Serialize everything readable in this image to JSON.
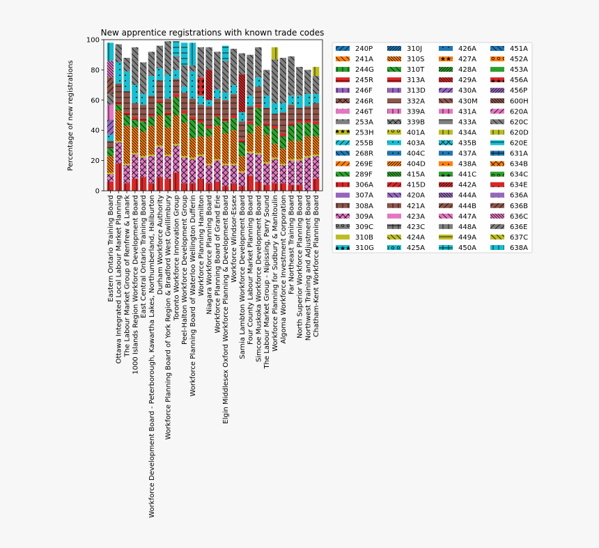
{
  "chart_data": {
    "type": "bar",
    "stacked": true,
    "title": "New apprentice registrations with known trade codes",
    "xlabel": "",
    "ylabel": "Percentage of new registrations",
    "ylim": [
      0,
      100
    ],
    "yticks": [
      0,
      20,
      40,
      60,
      80,
      100
    ],
    "grid": false,
    "legend_position": "right-outside",
    "palette": [
      "#1f77b4",
      "#ff7f0e",
      "#2ca02c",
      "#d62728",
      "#9467bd",
      "#8c564b",
      "#e377c2",
      "#7f7f7f",
      "#bcbd22",
      "#17becf"
    ],
    "categories": [
      "Eastern Ontario Training Board",
      "Ottawa Integrated Local Labour Market Planning",
      "The Labour Market Group of Renfrew & Lanark",
      "1000 Islands Region Workforce Development Board",
      "East Central Ontario Training Board",
      "Workforce Development Board - Peterborough, Kawartha Lakes, Northumberland, Haliburton",
      "Durham Workforce Authority",
      "Workforce Planning Board of York Region & Bradford West Gwillimbury",
      "Toronto Workforce Innovation Group",
      "Peel-Halton Workforce Development Group",
      "Workforce Planning Board of Waterloo Wellington Dufferin",
      "Workforce Planning Hamilton",
      "Niagara Workforce Planning Board",
      "Workforce Planning Board of Grand Erie",
      "Elgin Middlesex Oxford Workforce Planning & Development Board",
      "Workforce Windsor-Essex",
      "Sarnia Lambton Workforce Development Board",
      "Four County Labour Market Planning Board",
      "Simcoe Muskoka Workforce Development Board",
      "The Labour Market Group - Nipissing, Parry Sound",
      "Workforce Planning for Sudbury & Manitoulin",
      "Algoma Workforce Investment Corporation",
      "Far Northeast Training Board",
      "North Superior Workforce Planning Board",
      "Northwest Training and Adjustment Board",
      "Chatham-Kent Workforce Planning Board"
    ],
    "series": [
      {
        "name": "240P",
        "hatch": "/"
      },
      {
        "name": "241A",
        "hatch": "\\"
      },
      {
        "name": "244G",
        "hatch": "|"
      },
      {
        "name": "245R",
        "hatch": "-"
      },
      {
        "name": "246F",
        "hatch": "|"
      },
      {
        "name": "246R",
        "hatch": "x"
      },
      {
        "name": "246T",
        "hatch": "."
      },
      {
        "name": "253A",
        "hatch": "."
      },
      {
        "name": "253H",
        "hatch": "*"
      },
      {
        "name": "255B",
        "hatch": "/"
      },
      {
        "name": "268R",
        "hatch": "\\"
      },
      {
        "name": "269E",
        "hatch": "/"
      },
      {
        "name": "289F",
        "hatch": "\\"
      },
      {
        "name": "306A",
        "hatch": "|",
        "values": [
          6,
          18,
          5,
          8,
          9,
          5,
          9,
          8,
          12,
          5,
          5,
          8,
          5,
          6,
          3,
          5,
          3,
          10,
          6,
          4,
          5,
          5,
          4,
          4,
          0,
          8
        ]
      },
      {
        "name": "307A",
        "hatch": "-"
      },
      {
        "name": "308A",
        "hatch": "+"
      },
      {
        "name": "309A",
        "hatch": "x",
        "values": [
          5,
          14,
          12,
          16,
          13,
          18,
          20,
          15,
          18,
          17,
          16,
          15,
          12,
          14,
          14,
          12,
          9,
          15,
          18,
          14,
          16,
          12,
          16,
          16,
          22,
          15
        ]
      },
      {
        "name": "309C",
        "hatch": "o"
      },
      {
        "name": "310B",
        "hatch": "",
        "values": [
          1,
          1,
          1,
          1,
          1,
          1,
          1,
          1,
          1,
          1,
          1,
          1,
          1,
          1,
          1,
          1,
          1,
          1,
          1,
          1,
          1,
          1,
          1,
          1,
          1,
          1
        ]
      },
      {
        "name": "310G",
        "hatch": "*"
      },
      {
        "name": "310J",
        "hatch": "//"
      },
      {
        "name": "310S",
        "hatch": "\\\\",
        "values": [
          11,
          20,
          25,
          17,
          16,
          19,
          20,
          18,
          19,
          22,
          13,
          12,
          18,
          22,
          20,
          22,
          10,
          12,
          18,
          18,
          9,
          10,
          12,
          12,
          13,
          12
        ]
      },
      {
        "name": "310T",
        "hatch": "\\",
        "values": [
          5,
          4,
          7,
          5,
          7,
          6,
          8,
          8,
          12,
          6,
          12,
          9,
          5,
          6,
          8,
          8,
          9,
          6,
          12,
          6,
          10,
          8,
          10,
          12,
          9,
          8
        ]
      },
      {
        "name": "313A",
        "hatch": "-",
        "values": [
          0,
          2,
          2,
          2,
          2,
          2,
          2,
          2,
          2,
          2,
          2,
          2,
          2,
          2,
          2,
          2,
          2,
          2,
          2,
          2,
          2,
          2,
          2,
          2,
          2,
          2
        ]
      },
      {
        "name": "313D",
        "hatch": "|"
      },
      {
        "name": "332A",
        "hatch": "-",
        "values": [
          5,
          12,
          14,
          9,
          9,
          12,
          13,
          9,
          10,
          12,
          12,
          10,
          13,
          10,
          12,
          14,
          12,
          10,
          12,
          10,
          8,
          14,
          12,
          8,
          9,
          12
        ]
      },
      {
        "name": "339A",
        "hatch": "+"
      },
      {
        "name": "339B",
        "hatch": "x"
      },
      {
        "name": "401A",
        "hatch": "o"
      },
      {
        "name": "403A",
        "hatch": ".",
        "values": [
          4,
          14,
          13,
          12,
          7,
          13,
          8,
          16,
          6,
          4,
          18,
          6,
          4,
          6,
          5,
          6,
          6,
          7,
          6,
          8,
          7,
          6,
          6,
          8,
          8,
          6
        ]
      },
      {
        "name": "404C",
        "hatch": "."
      },
      {
        "name": "404D",
        "hatch": "//"
      },
      {
        "name": "415A",
        "hatch": "\\\\"
      },
      {
        "name": "415D",
        "hatch": "/"
      },
      {
        "name": "420A",
        "hatch": "\\"
      },
      {
        "name": "421A",
        "hatch": "|"
      },
      {
        "name": "423A",
        "hatch": ""
      },
      {
        "name": "423C",
        "hatch": "+"
      },
      {
        "name": "424A",
        "hatch": "\\"
      },
      {
        "name": "425A",
        "hatch": "o"
      },
      {
        "name": "426A",
        "hatch": "."
      },
      {
        "name": "427A",
        "hatch": "*"
      },
      {
        "name": "428A",
        "hatch": "//"
      },
      {
        "name": "429A",
        "hatch": "\\\\",
        "values": [
          0,
          0,
          0,
          0,
          0,
          0,
          0,
          0,
          0,
          0,
          0,
          0,
          20,
          0,
          0,
          0,
          25,
          0,
          0,
          0,
          0,
          0,
          0,
          0,
          0,
          0
        ]
      },
      {
        "name": "430A",
        "hatch": "/",
        "values": [
          10,
          0,
          0,
          0,
          0,
          0,
          0,
          0,
          0,
          0,
          0,
          0,
          0,
          0,
          0,
          0,
          0,
          0,
          0,
          0,
          0,
          0,
          0,
          0,
          0,
          0
        ]
      },
      {
        "name": "430M",
        "hatch": "\\"
      },
      {
        "name": "431A",
        "hatch": "|",
        "values": [
          10,
          0,
          0,
          0,
          0,
          0,
          0,
          0,
          0,
          0,
          0,
          0,
          0,
          0,
          0,
          0,
          0,
          0,
          0,
          0,
          0,
          0,
          0,
          0,
          0,
          0
        ]
      },
      {
        "name": "433A",
        "hatch": "-"
      },
      {
        "name": "434A",
        "hatch": "|"
      },
      {
        "name": "435B",
        "hatch": "x"
      },
      {
        "name": "437A",
        "hatch": "."
      },
      {
        "name": "438A",
        "hatch": "."
      },
      {
        "name": "441C",
        "hatch": "*"
      },
      {
        "name": "442A",
        "hatch": "//"
      },
      {
        "name": "444A",
        "hatch": "\\\\"
      },
      {
        "name": "444B",
        "hatch": "/"
      },
      {
        "name": "447A",
        "hatch": "\\"
      },
      {
        "name": "448A",
        "hatch": "|"
      },
      {
        "name": "449A",
        "hatch": "-"
      },
      {
        "name": "450A",
        "hatch": "+"
      },
      {
        "name": "451A",
        "hatch": "\\"
      },
      {
        "name": "452A",
        "hatch": "o"
      },
      {
        "name": "453A",
        "hatch": ""
      },
      {
        "name": "456A",
        "hatch": "*",
        "values": [
          0,
          0,
          0,
          0,
          0,
          0,
          0,
          0,
          0,
          0,
          0,
          12,
          0,
          0,
          0,
          0,
          0,
          0,
          0,
          0,
          0,
          0,
          0,
          0,
          0,
          0
        ]
      },
      {
        "name": "456P",
        "hatch": "//"
      },
      {
        "name": "600H",
        "hatch": "\\\\"
      },
      {
        "name": "620A",
        "hatch": "/"
      },
      {
        "name": "620C",
        "hatch": "\\",
        "values": [
          7,
          12,
          9,
          25,
          21,
          16,
          15,
          22,
          9,
          14,
          4,
          20,
          15,
          25,
          21,
          24,
          14,
          27,
          20,
          17,
          29,
          30,
          26,
          19,
          16,
          12
        ]
      },
      {
        "name": "620D",
        "hatch": "|",
        "values": [
          0,
          0,
          0,
          0,
          0,
          0,
          0,
          0,
          0,
          0,
          0,
          0,
          0,
          0,
          0,
          0,
          0,
          0,
          0,
          0,
          8,
          0,
          0,
          0,
          0,
          6
        ]
      },
      {
        "name": "620E",
        "hatch": "-",
        "values": [
          0,
          0,
          0,
          0,
          0,
          0,
          0,
          0,
          10,
          15,
          0,
          0,
          0,
          0,
          10,
          0,
          0,
          0,
          0,
          0,
          0,
          0,
          0,
          0,
          0,
          0
        ]
      },
      {
        "name": "631A",
        "hatch": "+"
      },
      {
        "name": "634B",
        "hatch": "x"
      },
      {
        "name": "634C",
        "hatch": "o"
      },
      {
        "name": "634E",
        "hatch": "."
      },
      {
        "name": "636A",
        "hatch": "."
      },
      {
        "name": "636B",
        "hatch": "/",
        "values": [
          11,
          0,
          0,
          0,
          0,
          0,
          0,
          0,
          0,
          0,
          0,
          0,
          0,
          0,
          0,
          0,
          0,
          0,
          0,
          0,
          0,
          0,
          0,
          0,
          0,
          0
        ]
      },
      {
        "name": "636C",
        "hatch": "\\\\",
        "values": [
          11,
          0,
          0,
          0,
          0,
          0,
          0,
          0,
          0,
          0,
          0,
          0,
          0,
          0,
          0,
          0,
          0,
          0,
          0,
          0,
          0,
          0,
          0,
          0,
          0,
          0
        ]
      },
      {
        "name": "636E",
        "hatch": "/"
      },
      {
        "name": "637C",
        "hatch": "\\"
      },
      {
        "name": "638A",
        "hatch": "|",
        "values": [
          12,
          0,
          0,
          0,
          0,
          0,
          0,
          0,
          0,
          0,
          15,
          0,
          0,
          0,
          0,
          0,
          0,
          0,
          0,
          0,
          0,
          0,
          0,
          0,
          0,
          0
        ]
      }
    ]
  }
}
